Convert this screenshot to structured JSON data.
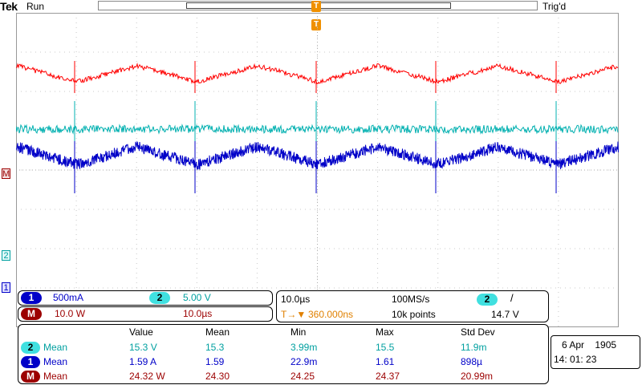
{
  "header": {
    "brand": "Tek",
    "run_state": "Run",
    "trigger_status": "Trig'd",
    "trigger_marker": "T"
  },
  "channels": {
    "ch1": {
      "badge": "1",
      "scale": "500mA",
      "color": "#0000c8"
    },
    "ch2": {
      "badge": "2",
      "scale": "5.00 V",
      "color": "#00c8c8"
    },
    "math": {
      "badge": "M",
      "scale": "10.0 W",
      "timebase": "10.0µs",
      "color": "#8b0000"
    }
  },
  "acquisition": {
    "horizontal_scale": "10.0µs",
    "sample_rate": "100MS/s",
    "trigger_delay": "360.000ns",
    "trigger_delay_prefix": "T→▼",
    "record_length": "10k points",
    "trigger_channel": "2",
    "trigger_slope": "/",
    "trigger_level": "14.7 V"
  },
  "measurements": {
    "headers": [
      "Value",
      "Mean",
      "Min",
      "Max",
      "Std Dev"
    ],
    "rows": [
      {
        "badge": "2",
        "type": "Mean",
        "value": "15.3 V",
        "mean": "15.3",
        "min": "3.99m",
        "max": "15.5",
        "std": "11.9m"
      },
      {
        "badge": "1",
        "type": "Mean",
        "value": "1.59 A",
        "mean": "1.59",
        "min": "22.9m",
        "max": "1.61",
        "std": "898µ"
      },
      {
        "badge": "M",
        "type": "Mean",
        "value": "24.32 W",
        "mean": "24.30",
        "min": "24.25",
        "max": "24.37",
        "std": "20.99m"
      }
    ]
  },
  "datetime": {
    "date": "6 Apr    1905",
    "time": "14: 01: 23"
  },
  "colors": {
    "red_trace": "#ff0000",
    "teal_trace": "#00b0b0",
    "blue_trace": "#0000c8",
    "grid": "#c8c8c8"
  }
}
